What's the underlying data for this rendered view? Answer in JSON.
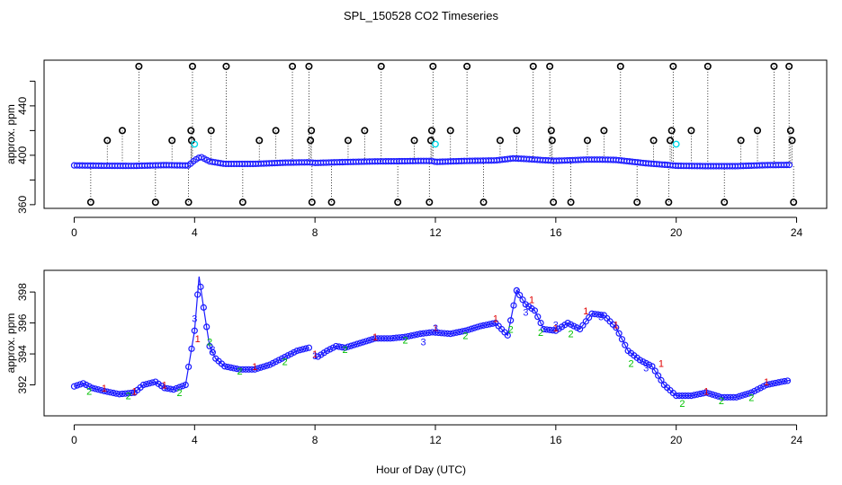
{
  "chart_data": {
    "title": "SPL_150528  CO2 Timeseries",
    "xlabel": "Hour of Day (UTC)",
    "panels": [
      {
        "id": "top",
        "type": "scatter",
        "ylabel": "approx. ppm",
        "xlim": [
          -1.0,
          25.0
        ],
        "ylim": [
          357,
          477
        ],
        "xticks": [
          0,
          4,
          8,
          12,
          16,
          20,
          24
        ],
        "xtick_labels": [
          "0",
          "4",
          "8",
          "12",
          "16",
          "20",
          "24"
        ],
        "yticks": [
          360,
          400,
          440
        ],
        "ytick_labels": [
          "360",
          "400",
          "440"
        ],
        "ytick_minor": [
          380,
          420,
          460
        ],
        "baseline_series": {
          "name": "CO2 (blue)",
          "color": "#1a1aff",
          "x": [
            0.0,
            1.0,
            2.0,
            3.0,
            3.8,
            4.0,
            4.2,
            4.5,
            5.0,
            6.0,
            7.0,
            7.8,
            8.0,
            9.0,
            10.0,
            11.0,
            11.5,
            11.9,
            12.0,
            13.0,
            14.0,
            14.6,
            15.0,
            15.6,
            16.0,
            17.0,
            17.5,
            18.0,
            19.0,
            19.7,
            20.0,
            21.0,
            22.0,
            23.0,
            23.8
          ],
          "y": [
            391.8,
            391.5,
            391.4,
            392.0,
            391.7,
            396.0,
            398.8,
            395.0,
            393.0,
            393.0,
            394.0,
            394.3,
            393.8,
            394.5,
            395.0,
            395.2,
            395.4,
            395.4,
            394.6,
            395.4,
            395.8,
            397.5,
            397.0,
            396.0,
            395.5,
            396.5,
            396.5,
            396.2,
            393.5,
            392.2,
            391.5,
            391.2,
            391.2,
            392.0,
            392.2
          ]
        },
        "outlier_series": {
          "name": "flagged (black)",
          "color": "#000000",
          "points": [
            {
              "x": 0.55,
              "y": 362
            },
            {
              "x": 1.1,
              "y": 412
            },
            {
              "x": 1.6,
              "y": 420
            },
            {
              "x": 2.15,
              "y": 472
            },
            {
              "x": 2.7,
              "y": 362
            },
            {
              "x": 3.25,
              "y": 412
            },
            {
              "x": 3.8,
              "y": 362
            },
            {
              "x": 3.88,
              "y": 420
            },
            {
              "x": 3.9,
              "y": 412
            },
            {
              "x": 3.93,
              "y": 472
            },
            {
              "x": 4.55,
              "y": 420
            },
            {
              "x": 5.05,
              "y": 472
            },
            {
              "x": 5.6,
              "y": 362
            },
            {
              "x": 6.15,
              "y": 412
            },
            {
              "x": 6.7,
              "y": 420
            },
            {
              "x": 7.25,
              "y": 472
            },
            {
              "x": 7.8,
              "y": 472
            },
            {
              "x": 7.85,
              "y": 412
            },
            {
              "x": 7.88,
              "y": 420
            },
            {
              "x": 7.9,
              "y": 362
            },
            {
              "x": 8.55,
              "y": 362
            },
            {
              "x": 9.1,
              "y": 412
            },
            {
              "x": 9.65,
              "y": 420
            },
            {
              "x": 10.2,
              "y": 472
            },
            {
              "x": 10.75,
              "y": 362
            },
            {
              "x": 11.3,
              "y": 412
            },
            {
              "x": 11.8,
              "y": 362
            },
            {
              "x": 11.85,
              "y": 412
            },
            {
              "x": 11.88,
              "y": 420
            },
            {
              "x": 11.92,
              "y": 472
            },
            {
              "x": 12.5,
              "y": 420
            },
            {
              "x": 13.05,
              "y": 472
            },
            {
              "x": 13.6,
              "y": 362
            },
            {
              "x": 14.15,
              "y": 412
            },
            {
              "x": 14.7,
              "y": 420
            },
            {
              "x": 15.25,
              "y": 472
            },
            {
              "x": 15.8,
              "y": 472
            },
            {
              "x": 15.85,
              "y": 420
            },
            {
              "x": 15.88,
              "y": 412
            },
            {
              "x": 15.92,
              "y": 362
            },
            {
              "x": 16.5,
              "y": 362
            },
            {
              "x": 17.05,
              "y": 412
            },
            {
              "x": 17.6,
              "y": 420
            },
            {
              "x": 18.15,
              "y": 472
            },
            {
              "x": 18.7,
              "y": 362
            },
            {
              "x": 19.25,
              "y": 412
            },
            {
              "x": 19.75,
              "y": 362
            },
            {
              "x": 19.8,
              "y": 412
            },
            {
              "x": 19.85,
              "y": 420
            },
            {
              "x": 19.9,
              "y": 472
            },
            {
              "x": 20.5,
              "y": 420
            },
            {
              "x": 21.05,
              "y": 472
            },
            {
              "x": 21.6,
              "y": 362
            },
            {
              "x": 22.15,
              "y": 412
            },
            {
              "x": 22.7,
              "y": 420
            },
            {
              "x": 23.25,
              "y": 472
            },
            {
              "x": 23.75,
              "y": 472
            },
            {
              "x": 23.8,
              "y": 420
            },
            {
              "x": 23.85,
              "y": 412
            },
            {
              "x": 23.9,
              "y": 362
            }
          ]
        },
        "highlight_series": {
          "name": "cyan markers",
          "color": "#00d8e8",
          "points": [
            {
              "x": 4.0,
              "y": 409
            },
            {
              "x": 12.0,
              "y": 409
            },
            {
              "x": 20.0,
              "y": 409
            }
          ]
        }
      },
      {
        "id": "bottom",
        "type": "line",
        "ylabel": "approx. ppm",
        "xlim": [
          -1.0,
          25.0
        ],
        "ylim": [
          390.0,
          399.4
        ],
        "xticks": [
          0,
          4,
          8,
          12,
          16,
          20,
          24
        ],
        "xtick_labels": [
          "0",
          "4",
          "8",
          "12",
          "16",
          "20",
          "24"
        ],
        "yticks": [
          392,
          394,
          396,
          398
        ],
        "ytick_labels": [
          "392",
          "394",
          "396",
          "398"
        ],
        "series": [
          {
            "name": "blue circles",
            "color": "#1a1aff",
            "marker": "o",
            "x": [
              0.0,
              0.3,
              0.6,
              1.0,
              1.5,
              2.0,
              2.3,
              2.7,
              3.0,
              3.3,
              3.7,
              4.0,
              4.15,
              4.3,
              4.5,
              4.7,
              5.0,
              5.5,
              6.0,
              6.5,
              7.0,
              7.4,
              7.8,
              8.0,
              8.4,
              8.7,
              9.0,
              9.5,
              10.0,
              10.5,
              11.0,
              11.5,
              11.9,
              12.5,
              13.0,
              13.5,
              14.0,
              14.4,
              14.7,
              15.0,
              15.3,
              15.6,
              16.0,
              16.4,
              16.8,
              17.2,
              17.6,
              18.0,
              18.4,
              18.8,
              19.2,
              19.6,
              20.0,
              20.5,
              21.0,
              21.5,
              22.0,
              22.5,
              23.0,
              23.5,
              23.8
            ],
            "y": [
              391.9,
              392.1,
              391.8,
              391.6,
              391.4,
              391.5,
              392.0,
              392.2,
              391.8,
              391.7,
              392.0,
              395.5,
              399.0,
              397.0,
              394.5,
              393.7,
              393.2,
              393.0,
              393.0,
              393.3,
              393.8,
              394.2,
              394.4,
              393.7,
              394.2,
              394.5,
              394.4,
              394.7,
              395.0,
              395.0,
              395.1,
              395.3,
              395.4,
              395.3,
              395.5,
              395.8,
              396.0,
              395.2,
              398.1,
              397.2,
              396.8,
              395.6,
              395.5,
              396.0,
              395.6,
              396.6,
              396.5,
              395.7,
              394.2,
              393.6,
              393.2,
              392.0,
              391.3,
              391.3,
              391.5,
              391.2,
              391.2,
              391.5,
              392.0,
              392.2,
              392.3
            ]
          },
          {
            "name": "red 1",
            "color": "#e00000",
            "marker": "1",
            "x": [
              1.0,
              2.0,
              3.0,
              4.1,
              6.0,
              8.0,
              10.0,
              12.0,
              14.0,
              15.2,
              16.0,
              17.0,
              18.0,
              19.5,
              21.0,
              23.0
            ],
            "y": [
              391.8,
              391.6,
              392.0,
              395.0,
              393.2,
              394.0,
              395.1,
              395.7,
              396.3,
              397.5,
              395.7,
              396.8,
              395.9,
              393.4,
              391.6,
              392.2
            ]
          },
          {
            "name": "green 2",
            "color": "#00c000",
            "marker": "2",
            "x": [
              0.5,
              1.8,
              3.5,
              4.5,
              5.5,
              7.0,
              9.0,
              11.0,
              13.0,
              14.5,
              15.5,
              16.5,
              18.5,
              20.2,
              21.5,
              22.5
            ],
            "y": [
              391.6,
              391.3,
              391.5,
              394.8,
              392.9,
              393.5,
              394.3,
              394.9,
              395.2,
              395.6,
              395.4,
              395.3,
              393.4,
              390.8,
              391.0,
              391.2
            ]
          },
          {
            "name": "blue 3",
            "color": "#1a1aff",
            "marker": "3",
            "x": [
              4.0,
              4.6,
              8.0,
              11.6,
              12.0,
              14.7,
              15.0,
              16.0,
              17.5,
              19.0
            ],
            "y": [
              396.3,
              394.3,
              393.9,
              394.8,
              395.7,
              398.1,
              396.7,
              395.9,
              396.4,
              393.1
            ]
          }
        ]
      }
    ]
  }
}
